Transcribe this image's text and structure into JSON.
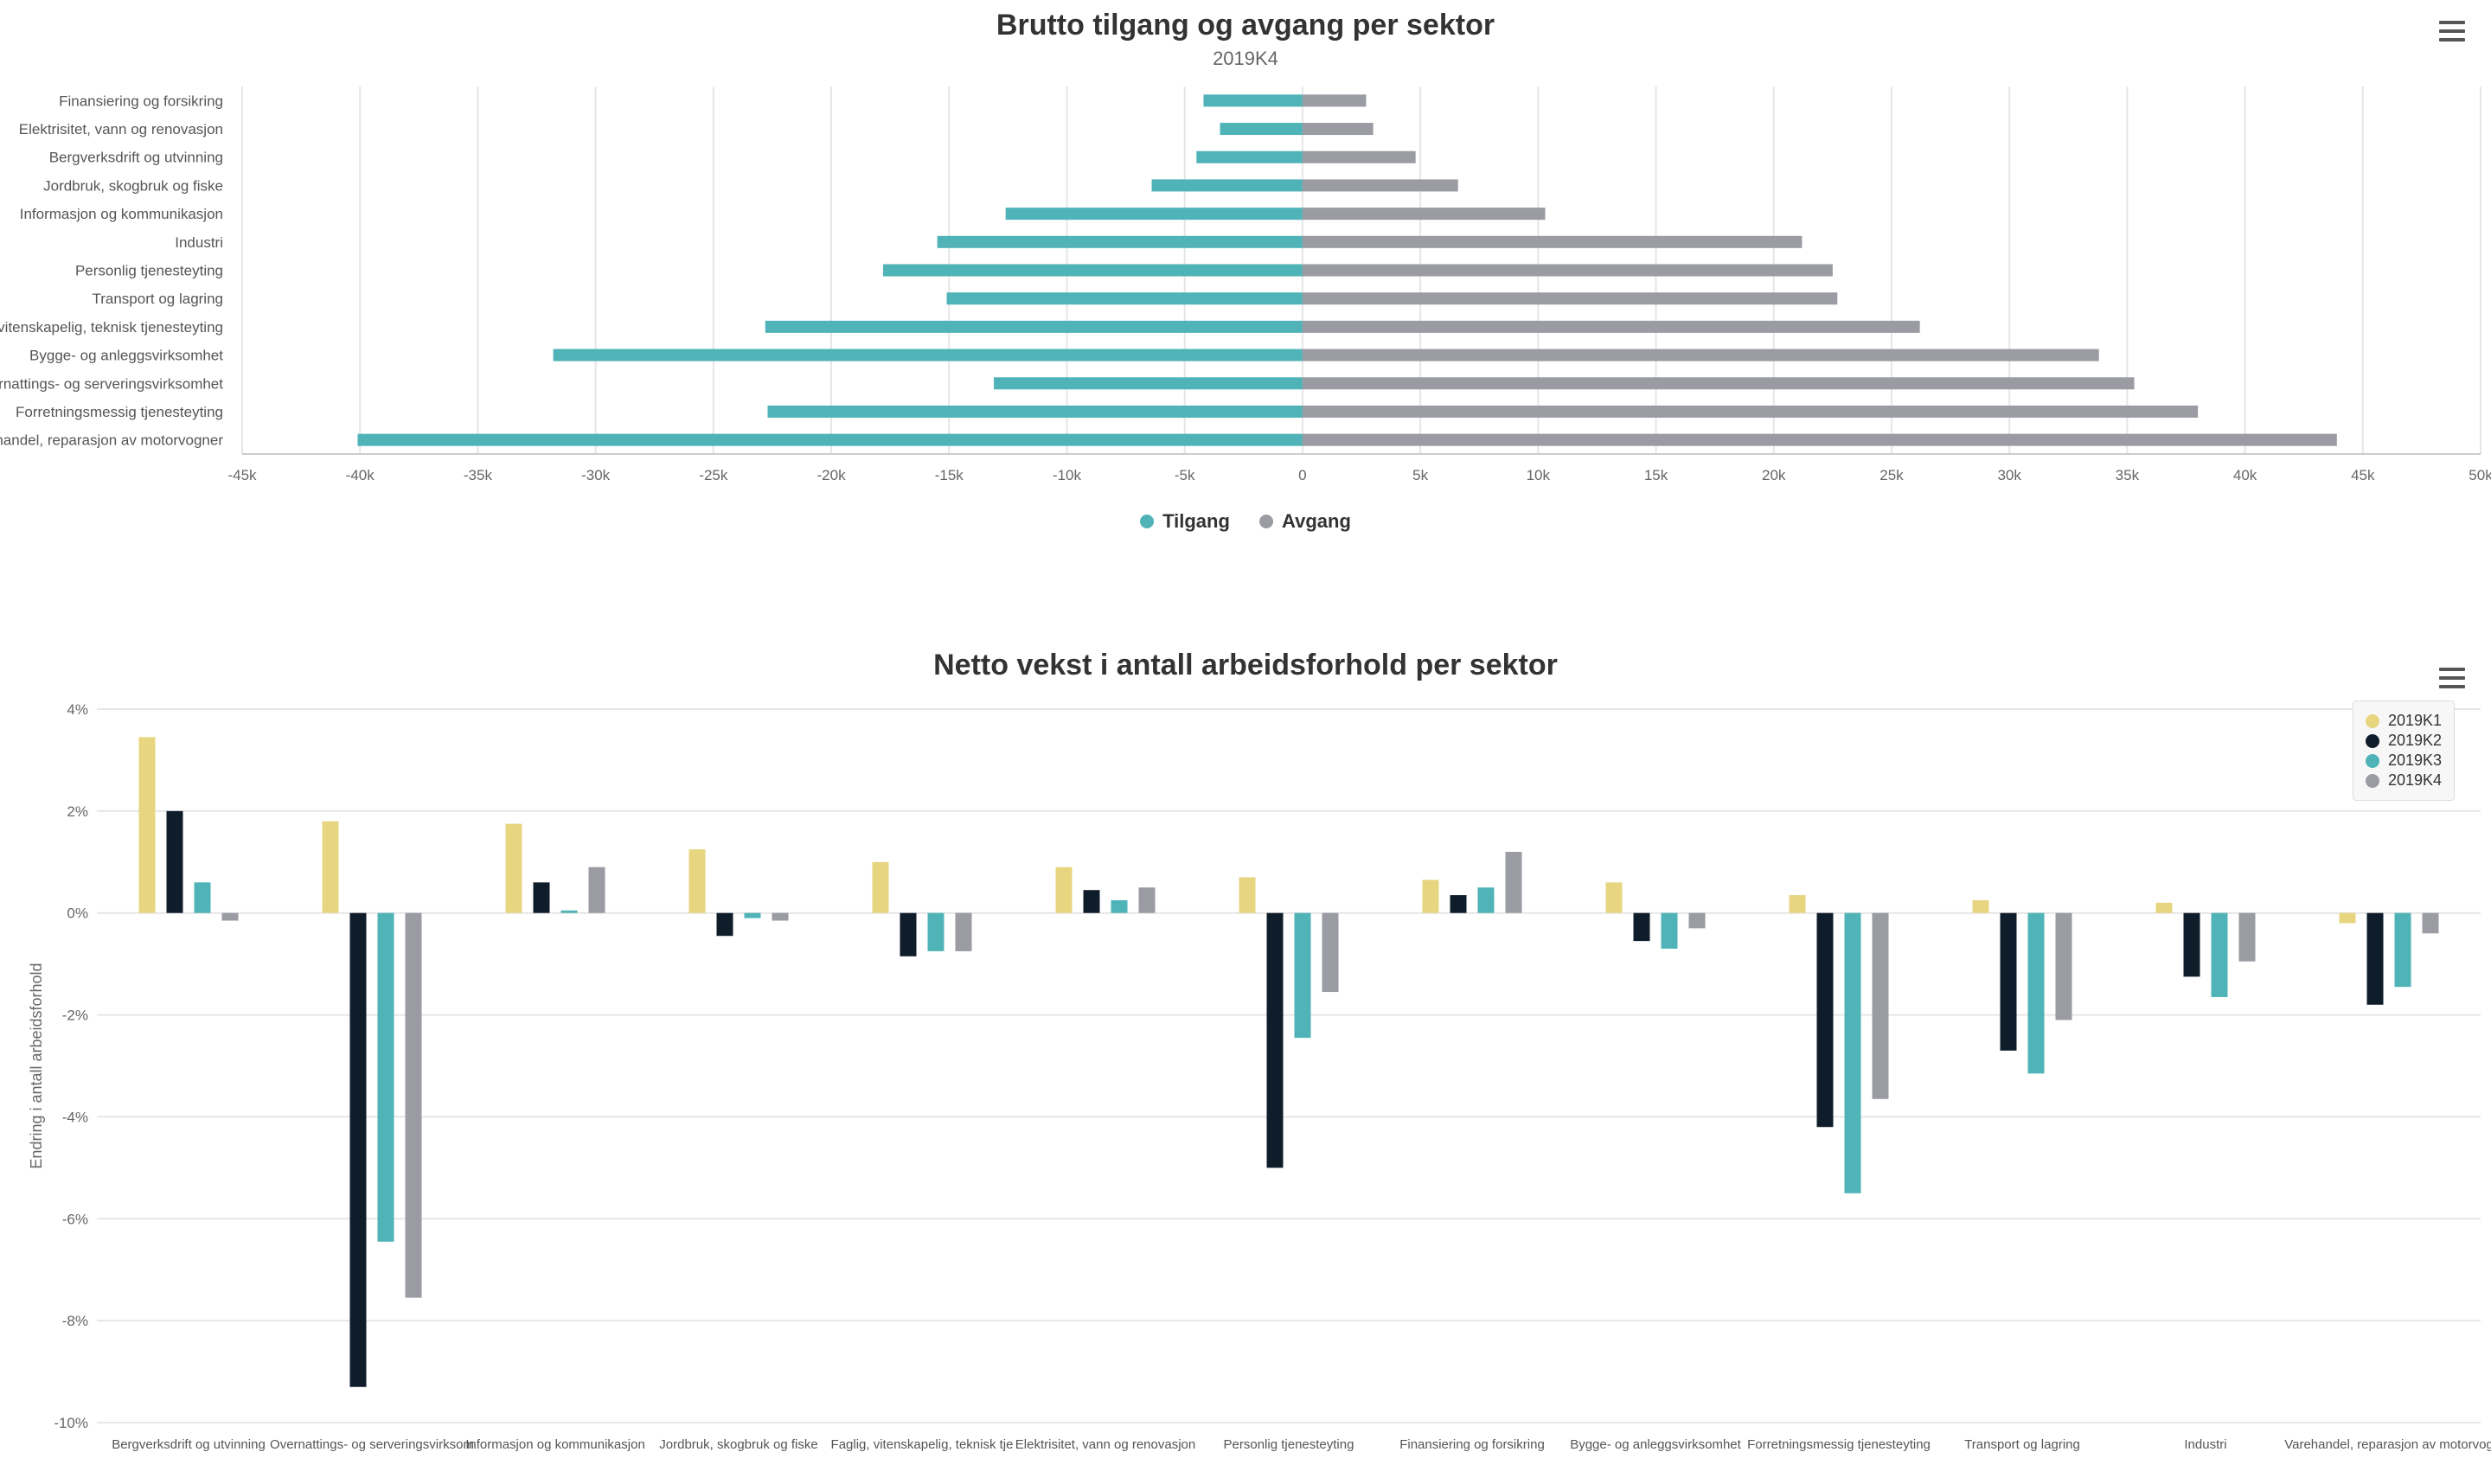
{
  "top_chart": {
    "title": "Brutto tilgang og avgang per sektor",
    "subtitle": "2019K4",
    "menu_icon": "hamburger-menu-icon",
    "legend": [
      {
        "label": "Tilgang",
        "color": "#4fb3b7"
      },
      {
        "label": "Avgang",
        "color": "#9a9ba3"
      }
    ]
  },
  "bottom_chart": {
    "title": "Netto vekst i antall arbeidsforhold per sektor",
    "menu_icon": "hamburger-menu-icon",
    "ylabel": "Endring i antall arbeidsforhold",
    "legend": [
      {
        "label": "2019K1",
        "color": "#e8d57f"
      },
      {
        "label": "2019K2",
        "color": "#0f1d2b"
      },
      {
        "label": "2019K3",
        "color": "#4fb3b7"
      },
      {
        "label": "2019K4",
        "color": "#9a9ba3"
      }
    ]
  },
  "chart_data": [
    {
      "type": "bar",
      "orientation": "horizontal",
      "title": "Brutto tilgang og avgang per sektor",
      "subtitle": "2019K4",
      "categories": [
        "Finansiering og forsikring",
        "Elektrisitet, vann og renovasjon",
        "Bergverksdrift og utvinning",
        "Jordbruk, skogbruk og fiske",
        "Informasjon og kommunikasjon",
        "Industri",
        "Personlig tjenesteyting",
        "Transport og lagring",
        "Faglig, vitenskapelig, teknisk tjenesteyting",
        "Bygge- og anleggsvirksomhet",
        "Overnattings- og serveringsvirksomhet",
        "Forretningsmessig tjenesteyting",
        "Varehandel, reparasjon av motorvogner"
      ],
      "x_ticks": [
        "-45k",
        "-40k",
        "-35k",
        "-30k",
        "-25k",
        "-20k",
        "-15k",
        "-10k",
        "-5k",
        "0",
        "5k",
        "10k",
        "15k",
        "20k",
        "25k",
        "30k",
        "35k",
        "40k",
        "45k",
        "50k"
      ],
      "xlim": [
        -45000,
        50000
      ],
      "series": [
        {
          "name": "Tilgang",
          "color": "#4fb3b7",
          "values": [
            -4200,
            -3500,
            -4500,
            -6400,
            -12600,
            -15500,
            -17800,
            -15100,
            -22800,
            -31800,
            -13100,
            -22700,
            -40100
          ]
        },
        {
          "name": "Avgang",
          "color": "#9a9ba3",
          "values": [
            2700,
            3000,
            4800,
            6600,
            10300,
            21200,
            22500,
            22700,
            26200,
            33800,
            35300,
            38000,
            43900
          ]
        }
      ],
      "grid": true,
      "legend_position": "bottom"
    },
    {
      "type": "bar",
      "title": "Netto vekst i antall arbeidsforhold per sektor",
      "ylabel": "Endring i antall arbeidsforhold",
      "categories": [
        "Bergverksdrift og utvinning",
        "Overnattings- og serveringsvirksomhet",
        "Informasjon og kommunikasjon",
        "Jordbruk, skogbruk og fiske",
        "Faglig, vitenskapelig, teknisk tjenesteyting",
        "Elektrisitet, vann og renovasjon",
        "Personlig tjenesteyting",
        "Finansiering og forsikring",
        "Bygge- og anleggsvirksomhet",
        "Forretningsmessig tjenesteyting",
        "Transport og lagring",
        "Industri",
        "Varehandel, reparasjon av motorvogner"
      ],
      "y_ticks": [
        "4%",
        "2%",
        "0%",
        "-2%",
        "-4%",
        "-6%",
        "-8%",
        "-10%"
      ],
      "ylim": [
        -10,
        4
      ],
      "series": [
        {
          "name": "2019K1",
          "color": "#e8d57f",
          "values": [
            3.45,
            1.8,
            1.75,
            1.25,
            1.0,
            0.9,
            0.7,
            0.65,
            0.6,
            0.35,
            0.25,
            0.2,
            -0.2
          ]
        },
        {
          "name": "2019K2",
          "color": "#0f1d2b",
          "values": [
            2.0,
            -9.3,
            0.6,
            -0.45,
            -0.85,
            0.45,
            -5.0,
            0.35,
            -0.55,
            -4.2,
            -2.7,
            -1.25,
            -1.8
          ]
        },
        {
          "name": "2019K3",
          "color": "#4fb3b7",
          "values": [
            0.6,
            -6.45,
            0.05,
            -0.1,
            -0.75,
            0.25,
            -2.45,
            0.5,
            -0.7,
            -5.5,
            -3.15,
            -1.65,
            -1.45
          ]
        },
        {
          "name": "2019K4",
          "color": "#9a9ba3",
          "values": [
            -0.15,
            -7.55,
            0.9,
            -0.15,
            -0.75,
            0.5,
            -1.55,
            1.2,
            -0.3,
            -3.65,
            -2.1,
            -0.95,
            -0.4
          ]
        }
      ],
      "grid": true,
      "legend_position": "top-right"
    }
  ]
}
